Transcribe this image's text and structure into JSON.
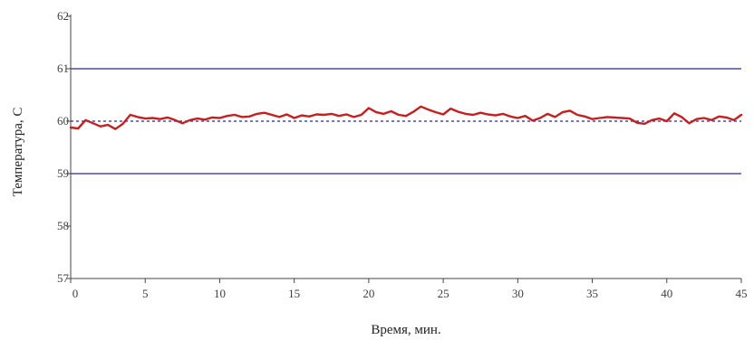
{
  "chart_data": {
    "type": "line",
    "title": "",
    "xlabel": "Время, мин.",
    "ylabel": "Температура, С",
    "xlim": [
      0,
      45
    ],
    "ylim": [
      57,
      62
    ],
    "x_ticks": [
      0,
      5,
      10,
      15,
      20,
      25,
      30,
      35,
      40,
      45
    ],
    "y_ticks": [
      57,
      58,
      59,
      60,
      61,
      62
    ],
    "grid": false,
    "legend": "none",
    "reference_lines": [
      {
        "value": 61,
        "style": "solid",
        "color": "#4a4ab8"
      },
      {
        "value": 59,
        "style": "solid",
        "color": "#4a4ab8"
      },
      {
        "value": 60,
        "style": "dashed",
        "color": "#4a4ab8"
      }
    ],
    "series": [
      {
        "color": "#c81e1e",
        "x": [
          0,
          0.5,
          1,
          1.5,
          2,
          2.5,
          3,
          3.5,
          4,
          4.5,
          5,
          5.5,
          6,
          6.5,
          7,
          7.5,
          8,
          8.5,
          9,
          9.5,
          10,
          10.5,
          11,
          11.5,
          12,
          12.5,
          13,
          13.5,
          14,
          14.5,
          15,
          15.5,
          16,
          16.5,
          17,
          17.5,
          18,
          18.5,
          19,
          19.5,
          20,
          20.5,
          21,
          21.5,
          22,
          22.5,
          23,
          23.5,
          24,
          24.5,
          25,
          25.5,
          26,
          26.5,
          27,
          27.5,
          28,
          28.5,
          29,
          29.5,
          30,
          30.5,
          31,
          31.5,
          32,
          32.5,
          33,
          33.5,
          34,
          34.5,
          35,
          35.5,
          36,
          36.5,
          37,
          37.5,
          38,
          38.5,
          39,
          39.5,
          40,
          40.5,
          41,
          41.5,
          42,
          42.5,
          43,
          43.5,
          44,
          44.5,
          45
        ],
        "values": [
          59.88,
          59.86,
          60.02,
          59.96,
          59.9,
          59.93,
          59.85,
          59.95,
          60.12,
          60.08,
          60.05,
          60.06,
          60.04,
          60.07,
          60.02,
          59.96,
          60.02,
          60.05,
          60.03,
          60.07,
          60.06,
          60.1,
          60.12,
          60.08,
          60.09,
          60.14,
          60.16,
          60.12,
          60.08,
          60.13,
          60.06,
          60.11,
          60.09,
          60.13,
          60.12,
          60.14,
          60.1,
          60.13,
          60.08,
          60.12,
          60.25,
          60.17,
          60.14,
          60.19,
          60.12,
          60.1,
          60.18,
          60.28,
          60.22,
          60.17,
          60.13,
          60.24,
          60.18,
          60.14,
          60.12,
          60.16,
          60.13,
          60.11,
          60.14,
          60.09,
          60.06,
          60.1,
          60.01,
          60.06,
          60.14,
          60.08,
          60.17,
          60.2,
          60.12,
          60.09,
          60.04,
          60.06,
          60.08,
          60.07,
          60.06,
          60.05,
          59.97,
          59.95,
          60.02,
          60.05,
          60.0,
          60.15,
          60.08,
          59.96,
          60.04,
          60.06,
          60.02,
          60.09,
          60.07,
          60.02,
          60.12
        ]
      }
    ]
  }
}
